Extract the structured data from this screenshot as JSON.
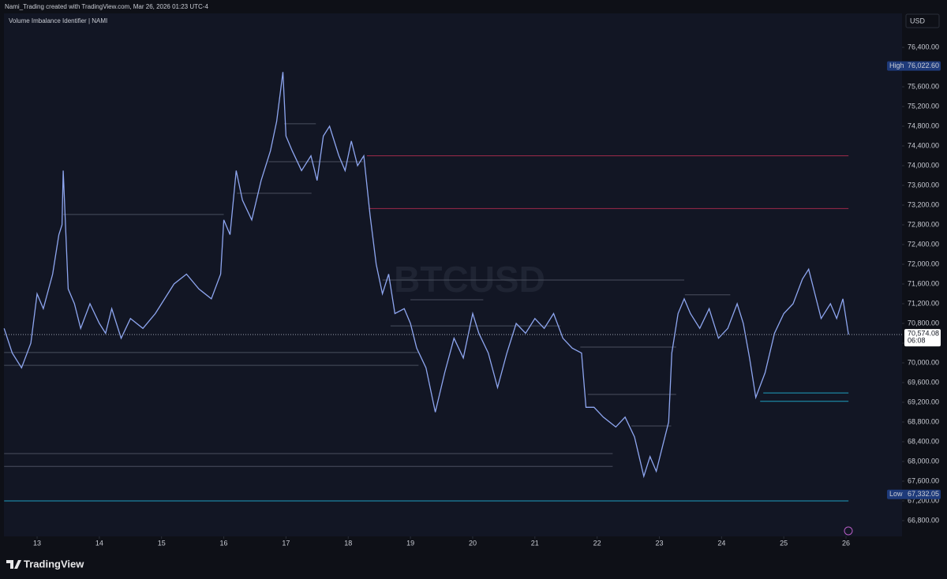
{
  "header": {
    "credit": "Nami_Trading created with TradingView.com, Mar 26, 2026 01:23 UTC-4"
  },
  "footer": {
    "brand": "TradingView"
  },
  "chart_data": {
    "type": "line",
    "title": "Volume Imbalance Identifier | NAMI",
    "watermark": "BTCUSD",
    "currency": "USD",
    "color": "#8ea6f0",
    "xlim": [
      12.467,
      26.9
    ],
    "xticks": [
      13,
      14,
      15,
      16,
      17,
      18,
      19,
      20,
      21,
      22,
      23,
      24,
      25,
      26
    ],
    "ylim": [
      66480,
      77088
    ],
    "yticks": [
      {
        "value": 66800,
        "label": "66,800.00"
      },
      {
        "value": 67200,
        "label": "67,200.00"
      },
      {
        "value": 67600,
        "label": "67,600.00"
      },
      {
        "value": 68000,
        "label": "68,000.00"
      },
      {
        "value": 68400,
        "label": "68,400.00"
      },
      {
        "value": 68800,
        "label": "68,800.00"
      },
      {
        "value": 69200,
        "label": "69,200.00"
      },
      {
        "value": 69600,
        "label": "69,600.00"
      },
      {
        "value": 70000,
        "label": "70,000.00"
      },
      {
        "value": 70400,
        "label": "70,400.00"
      },
      {
        "value": 70800,
        "label": "70,800.00"
      },
      {
        "value": 71200,
        "label": "71,200.00"
      },
      {
        "value": 71600,
        "label": "71,600.00"
      },
      {
        "value": 72000,
        "label": "72,000.00"
      },
      {
        "value": 72400,
        "label": "72,400.00"
      },
      {
        "value": 72800,
        "label": "72,800.00"
      },
      {
        "value": 73200,
        "label": "73,200.00"
      },
      {
        "value": 73600,
        "label": "73,600.00"
      },
      {
        "value": 74000,
        "label": "74,000.00"
      },
      {
        "value": 74400,
        "label": "74,400.00"
      },
      {
        "value": 74800,
        "label": "74,800.00"
      },
      {
        "value": 75200,
        "label": "75,200.00"
      },
      {
        "value": 75600,
        "label": "75,600.00"
      },
      {
        "value": 76000,
        "label": "76,000.00"
      },
      {
        "value": 76400,
        "label": "76,400.00"
      }
    ],
    "x": [
      12.47,
      12.6,
      12.75,
      12.9,
      13.0,
      13.1,
      13.25,
      13.35,
      13.4,
      13.42,
      13.5,
      13.6,
      13.7,
      13.85,
      14.0,
      14.1,
      14.2,
      14.35,
      14.5,
      14.7,
      14.9,
      15.0,
      15.2,
      15.4,
      15.6,
      15.8,
      15.95,
      16.0,
      16.1,
      16.2,
      16.3,
      16.45,
      16.6,
      16.75,
      16.85,
      16.95,
      17.0,
      17.1,
      17.25,
      17.4,
      17.5,
      17.6,
      17.7,
      17.85,
      17.95,
      18.05,
      18.15,
      18.25,
      18.35,
      18.45,
      18.55,
      18.65,
      18.75,
      18.9,
      19.0,
      19.1,
      19.25,
      19.4,
      19.55,
      19.7,
      19.85,
      20.0,
      20.1,
      20.25,
      20.4,
      20.55,
      20.7,
      20.85,
      21.0,
      21.15,
      21.3,
      21.45,
      21.6,
      21.75,
      21.82,
      21.95,
      22.1,
      22.3,
      22.45,
      22.6,
      22.75,
      22.85,
      22.95,
      23.05,
      23.15,
      23.2,
      23.3,
      23.4,
      23.5,
      23.65,
      23.8,
      23.95,
      24.1,
      24.25,
      24.35,
      24.45,
      24.55,
      24.7,
      24.85,
      25.0,
      25.15,
      25.3,
      25.4,
      25.5,
      25.6,
      25.75,
      25.85,
      25.95,
      26.0,
      26.04
    ],
    "values": [
      70700,
      70200,
      69900,
      70400,
      71400,
      71100,
      71800,
      72600,
      72800,
      73900,
      71500,
      71200,
      70700,
      71200,
      70800,
      70600,
      71100,
      70500,
      70900,
      70700,
      71000,
      71200,
      71600,
      71800,
      71500,
      71300,
      71800,
      72900,
      72600,
      73900,
      73300,
      72900,
      73700,
      74300,
      74900,
      75900,
      74600,
      74300,
      73900,
      74200,
      73700,
      74600,
      74800,
      74200,
      73900,
      74500,
      74000,
      74200,
      73000,
      72000,
      71400,
      71800,
      71000,
      71100,
      70800,
      70300,
      69900,
      69000,
      69800,
      70500,
      70100,
      71000,
      70600,
      70200,
      69500,
      70200,
      70800,
      70600,
      70900,
      70700,
      71000,
      70500,
      70300,
      70200,
      69100,
      69100,
      68900,
      68700,
      68900,
      68500,
      67700,
      68100,
      67800,
      68300,
      68800,
      70200,
      71000,
      71300,
      71000,
      70700,
      71100,
      70500,
      70700,
      71200,
      70800,
      70100,
      69300,
      69800,
      70600,
      71000,
      71200,
      71700,
      71900,
      71400,
      70900,
      71200,
      70900,
      71300,
      70900,
      70574.08
    ],
    "levels": [
      {
        "value": 74200,
        "from": 18.3,
        "to": 26.04,
        "color": "#9c2a4a"
      },
      {
        "value": 73130,
        "from": 18.33,
        "to": 26.04,
        "color": "#9c2a4a"
      },
      {
        "value": 69390,
        "from": 24.67,
        "to": 26.04,
        "color": "#1f9fbf"
      },
      {
        "value": 69220,
        "from": 24.62,
        "to": 26.04,
        "color": "#1f9fbf"
      },
      {
        "value": 67200,
        "from": 12.47,
        "to": 26.04,
        "color": "#1f9fbf"
      },
      {
        "value": 73010,
        "from": 13.42,
        "to": 16.0,
        "color": "#4a4f5e"
      },
      {
        "value": 70210,
        "from": 12.47,
        "to": 19.13,
        "color": "#4a4f5e"
      },
      {
        "value": 69950,
        "from": 12.47,
        "to": 19.13,
        "color": "#4a4f5e"
      },
      {
        "value": 68160,
        "from": 12.47,
        "to": 22.25,
        "color": "#4a4f5e"
      },
      {
        "value": 67900,
        "from": 12.47,
        "to": 22.25,
        "color": "#4a4f5e"
      },
      {
        "value": 71680,
        "from": 18.55,
        "to": 23.4,
        "color": "#4a4f5e"
      },
      {
        "value": 71280,
        "from": 19.0,
        "to": 20.17,
        "color": "#4a4f5e"
      },
      {
        "value": 70750,
        "from": 18.68,
        "to": 21.41,
        "color": "#4a4f5e"
      },
      {
        "value": 70320,
        "from": 21.73,
        "to": 23.27,
        "color": "#4a4f5e"
      },
      {
        "value": 69360,
        "from": 21.85,
        "to": 23.27,
        "color": "#4a4f5e"
      },
      {
        "value": 68720,
        "from": 22.55,
        "to": 23.19,
        "color": "#4a4f5e"
      },
      {
        "value": 74850,
        "from": 16.97,
        "to": 17.48,
        "color": "#4a4f5e"
      },
      {
        "value": 74080,
        "from": 16.72,
        "to": 18.24,
        "color": "#4a4f5e"
      },
      {
        "value": 73440,
        "from": 16.21,
        "to": 17.41,
        "color": "#4a4f5e"
      },
      {
        "value": 71380,
        "from": 23.41,
        "to": 24.14,
        "color": "#4a4f5e"
      }
    ],
    "high": {
      "name": "High",
      "value": 76022.6,
      "value_label": "76,022.60"
    },
    "low": {
      "name": "Low",
      "value": 67332.05,
      "value_label": "67,332.05"
    },
    "last_price": {
      "value": 70574.08,
      "label": "70,574.08",
      "countdown": "06:08"
    }
  }
}
